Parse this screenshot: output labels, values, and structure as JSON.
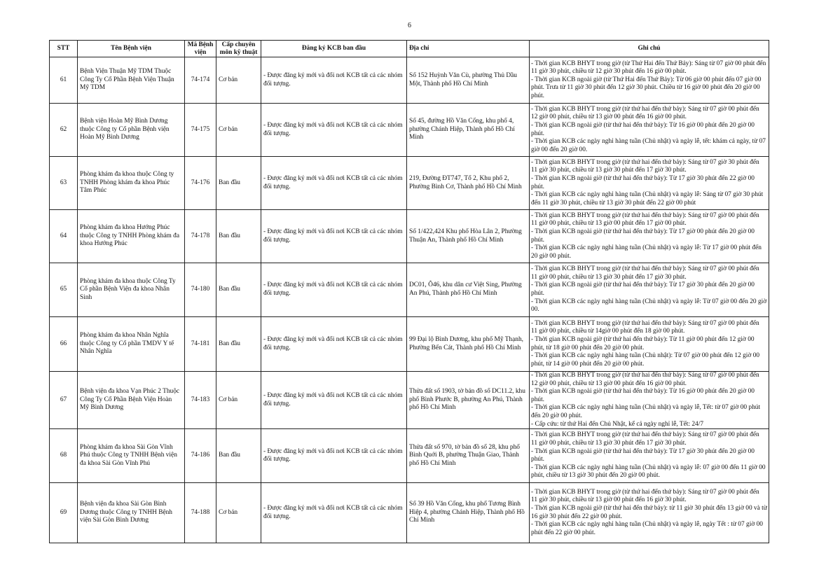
{
  "page_number": "6",
  "headers": {
    "stt": "STT",
    "name": "Tên Bệnh viện",
    "code": "Mã Bệnh viện",
    "level": "Cấp chuyên môn kỹ thuật",
    "registration": "Đăng ký KCB ban đầu",
    "address": "Địa chỉ",
    "notes": "Ghi chú"
  },
  "rows": [
    {
      "stt": "61",
      "name": "Bệnh Viện Thuận Mỹ TDM Thuộc Công Ty Cổ Phần Bệnh Viện Thuận Mỹ TDM",
      "code": "74-174",
      "level": "Cơ bản",
      "registration": "- Được đăng ký mới và đổi nơi KCB tất cả các nhóm đối tượng.",
      "address": "Số 152 Huỳnh Văn Cù, phường Thủ Dầu Một, Thành phố Hồ Chí Minh",
      "notes": [
        "- Thời gian KCB BHYT trong giờ (từ Thứ Hai đến Thứ Bảy): Sáng từ 07 giờ 00 phút đến 11 giờ 30 phút, chiều từ 12 giờ 30 phút đến 16 giờ 00 phút.",
        "- Thời gian KCB ngoài giờ (từ Thứ Hai đến Thứ Bảy): Từ 06 giờ 00 phút đến 07 giờ 00 phút. Trưa từ 11 giờ 30 phút đến 12 giờ 30 phút. Chiều từ 16 giờ 00 phút đến 20 giờ 00 phút."
      ]
    },
    {
      "stt": "62",
      "name": "Bệnh viện Hoàn Mỹ Bình Dương thuộc Công ty Cổ phần Bệnh viện Hoàn Mỹ Bình Dương",
      "code": "74-175",
      "level": "Cơ bản",
      "registration": "- Được đăng ký mới và đổi nơi KCB tất cả các nhóm đối tượng.",
      "address": "Số 45, đường Hồ Văn Cống, khu phố 4, phường Chánh Hiệp, Thành phố Hồ Chí Minh",
      "notes": [
        "- Thời gian KCB BHYT trong giờ (từ thứ hai đến thứ bảy): Sáng từ 07 giờ 00 phút đến 12 giờ 00 phút, chiều từ 13 giờ 00 phút đến 16 giờ 00 phút.",
        "- Thời gian KCB ngoài giờ (từ thứ hai đến thứ bảy): Từ 16 giờ 00 phút đến 20 giờ 00 phút.",
        "- Thời gian KCB các ngày nghỉ hàng tuần (Chủ nhật) và ngày lễ, tết: khám cả ngày, từ 07 giờ 00 đến 20 giờ 00."
      ]
    },
    {
      "stt": "63",
      "name": "Phòng khám đa khoa thuộc Công ty TNHH Phòng khám đa khoa Phúc Tâm Phúc",
      "code": "74-176",
      "level": "Ban đầu",
      "registration": "- Được đăng ký mới và đổi nơi KCB tất cả các nhóm đối tượng.",
      "address": "219, Đường ĐT747, Tổ 2, Khu phố 2, Phường Bình Cơ, Thành phố Hồ Chí Minh",
      "notes": [
        "- Thời gian KCB BHYT trong giờ (từ thứ hai đến thứ bảy): Sáng từ 07 giờ 30 phút đến 11 giờ 30 phút, chiều từ 13 giờ 30 phút đến 17 giờ 30 phút.",
        "- Thời gian KCB ngoài giờ (từ thứ hai đến thứ bảy): Từ 17 giờ 30 phút đến 22 giờ 00 phút.",
        "- Thời gian KCB các ngày nghỉ hàng tuần (Chủ nhật) và ngày lễ: Sáng từ 07 giờ 30 phút đến 11 giờ 30 phút, chiều từ 13 giờ 30 phút đến 22 giờ 00 phút"
      ]
    },
    {
      "stt": "64",
      "name": "Phòng khám đa khoa Hướng Phúc thuộc Công ty TNHH Phòng khám đa khoa Hướng Phúc",
      "code": "74-178",
      "level": "Ban đầu",
      "registration": "- Được đăng ký mới và đổi nơi KCB tất cả các nhóm đối tượng.",
      "address": "Số 1/422,424 Khu phố Hòa Lân 2, Phường Thuận An, Thành phố Hồ Chí Minh",
      "notes": [
        "- Thời gian KCB BHYT trong giờ (từ thứ hai đến thứ bảy): Sáng từ 07 giờ 00 phút đến 11 giờ 00 phút, chiều từ 13 giờ 00 phút đến 17 giờ 00 phút.",
        "- Thời gian KCB ngoài giờ (từ thứ hai đến thứ bảy): Từ 17 giờ 00 phút đến 20 giờ 00 phút.",
        "- Thời gian KCB các ngày nghỉ hàng tuần (Chủ nhật) và ngày lễ: Từ 17 giờ 00 phút đến 20 giờ 00 phút."
      ]
    },
    {
      "stt": "65",
      "name": "Phòng khám đa khoa thuộc Công Ty Cổ phần Bệnh Viện đa khoa Nhân Sinh",
      "code": "74-180",
      "level": "Ban đầu",
      "registration": "- Được đăng ký mới và đổi nơi KCB tất cả các nhóm đối tượng.",
      "address": "DC01, Ô46, khu dân cư Việt Sing, Phường An Phú, Thành phố Hồ Chí Minh",
      "notes": [
        "- Thời gian KCB BHYT trong giờ (từ thứ hai đến thứ bảy): Sáng từ 07 giờ 00 phút đến 11 giờ 00 phút, chiều từ 13 giờ 30 phút đến 17 giờ 30 phút.",
        "- Thời gian KCB ngoài giờ (từ thứ hai đến thứ bảy): Từ 17 giờ 30 phút đến 20 giờ 00 phút.",
        "- Thời gian KCB các ngày nghỉ hàng tuần (Chủ nhật) và ngày lễ: Từ 07 giờ 00 đến 20 giờ 00."
      ]
    },
    {
      "stt": "66",
      "name": "Phòng khám đa khoa Nhân Nghĩa thuộc Công ty Cổ phần TMDV Y tế Nhân Nghĩa",
      "code": "74-181",
      "level": "Ban đầu",
      "registration": "- Được đăng ký mới và đổi nơi KCB tất cả các nhóm đối tượng.",
      "address": "99 Đại lộ Bình Dương, khu phố Mỹ Thạnh, Phường Bến Cát, Thành phố Hồ Chí Minh",
      "notes": [
        "- Thời gian KCB BHYT trong giờ (từ thứ hai đến thứ bảy): Sáng từ 07 giờ 00 phút đến 11 giờ 00 phút, chiều từ 14giờ 00 phút đến 18 giờ 00 phút.",
        "- Thời gian KCB ngoài giờ (từ thứ hai đến thứ bảy): Từ 11 giờ 00 phút đến 12 giờ 00 phút, từ 18 giờ 00 phút đến 20 giờ 00 phút.",
        "- Thời gian KCB các ngày nghỉ hàng tuần (Chủ nhật): Từ 07 giờ 00 phút đến 12 giờ 00 phút, từ 14 giờ 00 phút đến 20 giờ 00 phút."
      ]
    },
    {
      "stt": "67",
      "name": "Bệnh viện đa khoa Vạn Phúc 2 Thuộc Công Ty Cổ Phần Bệnh Viện Hoàn Mỹ Bình Dương",
      "code": "74-183",
      "level": "Cơ bản",
      "registration": "- Được đăng ký mới và đổi nơi KCB tất cả các nhóm đối tượng.",
      "address": "Thửa đất số 1903, tờ bản đồ số DC11.2, khu phố Bình Phước B, phường An Phú, Thành phố Hồ Chí Minh",
      "notes": [
        "- Thời gian KCB BHYT trong giờ (từ thứ hai đến thứ bảy): Sáng từ 07 giờ 00 phút đến 12 giờ 00 phút, chiều từ 13 giờ 00 phút đến 16 giờ 00 phút.",
        "- Thời gian KCB ngoài giờ (từ thứ hai đến thứ bảy): Từ 16 giờ 00 phút đến 20 giờ 00 phút.",
        "- Thời gian KCB các ngày nghỉ hàng tuần (Chủ nhật) và ngày lễ, Tết: từ 07 giờ 00 phút đến 20 giờ 00 phút.",
        "- Cấp cứu: từ thứ Hai đến Chủ Nhật, kể cả ngày nghỉ lễ, Tết: 24/7"
      ]
    },
    {
      "stt": "68",
      "name": "Phòng khám đa khoa Sài Gòn Vĩnh Phú thuộc Công ty TNHH Bệnh viện đa khoa Sài Gòn Vĩnh Phú",
      "code": "74-186",
      "level": "Ban đầu",
      "registration": "- Được đăng ký mới và đổi nơi KCB tất cả các nhóm đối tượng.",
      "address": "Thửa đất số 970, tờ bản đồ số 28, khu phố Bình Quới B, phường Thuận Giao, Thành phố Hồ Chí Minh",
      "notes": [
        "- Thời gian KCB BHYT trong giờ (từ thứ hai đến thứ bảy): Sáng từ 07 giờ 00 phút đến 11 giờ 00 phút, chiều từ 13 giờ 30 phút đến 17 giờ 30 phút.",
        "- Thời gian KCB ngoài giờ (từ thứ hai đến thứ bảy): Từ 17 giờ 30 phút đến 20 giờ 00 phút.",
        "- Thời gian KCB các ngày nghỉ hàng tuần (Chủ nhật) và ngày lễ: 07 giờ 00 đến 11 giờ 00 phút, chiều từ 13 giờ 30 phút đến 20 giờ 00 phút."
      ]
    },
    {
      "stt": "69",
      "name": "Bệnh viện đa khoa Sài Gòn Bình Dương thuộc Công ty TNHH Bệnh viện Sài Gòn Bình Dương",
      "code": "74-188",
      "level": "Cơ bản",
      "registration": "- Được đăng ký mới và đổi nơi KCB tất cả các nhóm đối tượng.",
      "address": "Số 39 Hồ Văn Cống, khu phố Tương Bình Hiệp 4, phường Chánh Hiệp, Thành phố Hồ Chí Minh",
      "notes": [
        "- Thời gian KCB BHYT trong giờ (từ thứ hai đến thứ bảy): Sáng từ 07 giờ 00 phút đến 11 giờ 30 phút, chiều từ 13 giờ 00 phút đến 16 giờ 30 phút.",
        "- Thời gian KCB ngoài giờ (từ thứ hai đến thứ bảy): từ 11 giờ 30 phút đến 13 giờ 00 và từ 16 giờ 30 phút đến 22 giờ 00 phút.",
        "- Thời gian KCB các ngày nghỉ hàng tuần (Chủ nhật) và ngày lễ, ngày Tết : từ  07 giờ 00 phút đến 22 giờ 00 phút."
      ]
    }
  ]
}
